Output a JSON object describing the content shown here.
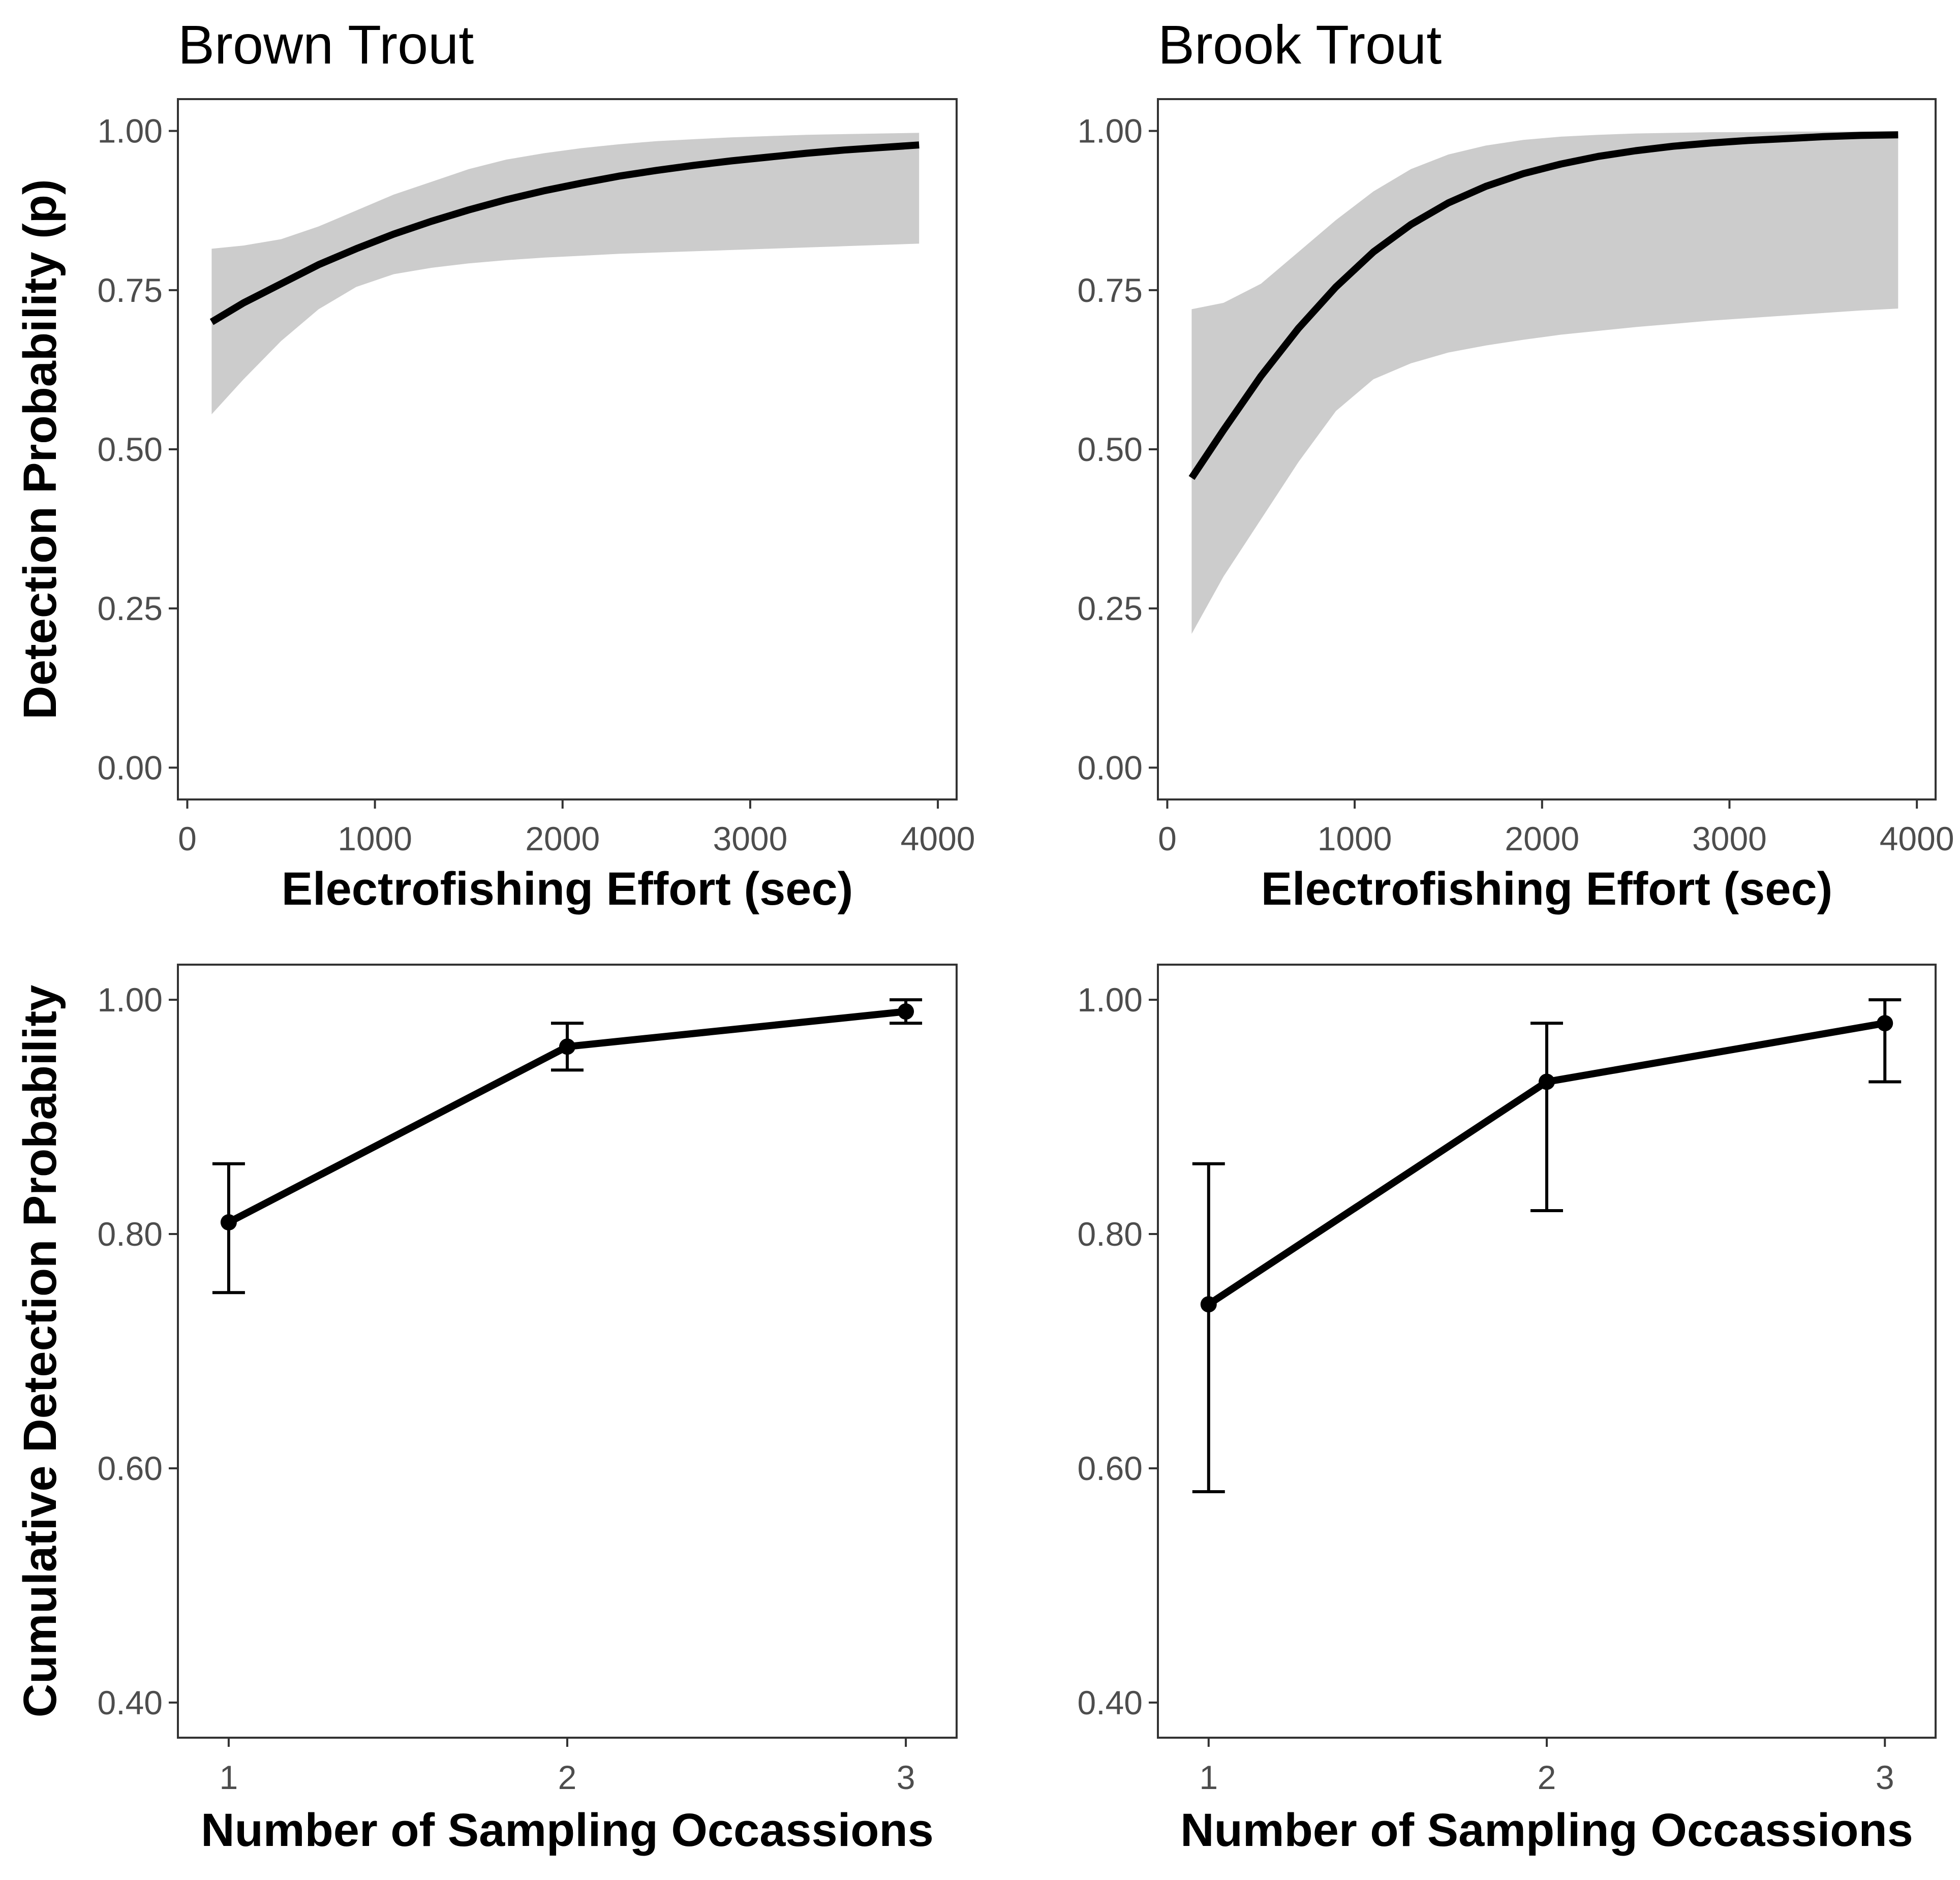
{
  "chart_data": [
    {
      "type": "line",
      "panel": "top-left",
      "title": "Brown Trout",
      "xlabel": "Electrofishing Effort (sec)",
      "ylabel": "Detection Probability (p)",
      "xlim": [
        -50,
        4100
      ],
      "ylim": [
        -0.05,
        1.05
      ],
      "xticks": [
        0,
        1000,
        2000,
        3000,
        4000
      ],
      "xtick_labels": [
        "0",
        "1000",
        "2000",
        "3000",
        "4000"
      ],
      "yticks": [
        0,
        0.25,
        0.5,
        0.75,
        1
      ],
      "ytick_labels": [
        "0.00",
        "0.25",
        "0.50",
        "0.75",
        "1.00"
      ],
      "grid": false,
      "series": [
        {
          "x": [
            130,
            300,
            500,
            700,
            900,
            1100,
            1300,
            1500,
            1700,
            1900,
            2100,
            2300,
            2500,
            2700,
            2900,
            3100,
            3300,
            3500,
            3700,
            3900
          ],
          "y": [
            0.7,
            0.73,
            0.76,
            0.79,
            0.815,
            0.838,
            0.858,
            0.876,
            0.892,
            0.906,
            0.918,
            0.929,
            0.938,
            0.946,
            0.953,
            0.959,
            0.965,
            0.97,
            0.974,
            0.978
          ],
          "lower": [
            0.555,
            0.61,
            0.67,
            0.72,
            0.755,
            0.775,
            0.785,
            0.792,
            0.797,
            0.801,
            0.804,
            0.807,
            0.809,
            0.811,
            0.813,
            0.815,
            0.817,
            0.819,
            0.821,
            0.823
          ],
          "upper": [
            0.815,
            0.82,
            0.83,
            0.85,
            0.875,
            0.9,
            0.92,
            0.94,
            0.955,
            0.965,
            0.973,
            0.979,
            0.984,
            0.987,
            0.99,
            0.992,
            0.994,
            0.995,
            0.996,
            0.997
          ]
        }
      ]
    },
    {
      "type": "line",
      "panel": "top-right",
      "title": "Brook Trout",
      "xlabel": "Electrofishing Effort (sec)",
      "ylabel": "",
      "xlim": [
        -50,
        4100
      ],
      "ylim": [
        -0.05,
        1.05
      ],
      "xticks": [
        0,
        1000,
        2000,
        3000,
        4000
      ],
      "xtick_labels": [
        "0",
        "1000",
        "2000",
        "3000",
        "4000"
      ],
      "yticks": [
        0,
        0.25,
        0.5,
        0.75,
        1
      ],
      "ytick_labels": [
        "0.00",
        "0.25",
        "0.50",
        "0.75",
        "1.00"
      ],
      "grid": false,
      "series": [
        {
          "x": [
            130,
            300,
            500,
            700,
            900,
            1100,
            1300,
            1500,
            1700,
            1900,
            2100,
            2300,
            2500,
            2700,
            2900,
            3100,
            3300,
            3500,
            3700,
            3900
          ],
          "y": [
            0.455,
            0.53,
            0.615,
            0.69,
            0.755,
            0.81,
            0.853,
            0.887,
            0.913,
            0.933,
            0.948,
            0.96,
            0.969,
            0.976,
            0.981,
            0.985,
            0.988,
            0.991,
            0.993,
            0.994
          ],
          "lower": [
            0.21,
            0.3,
            0.39,
            0.48,
            0.56,
            0.61,
            0.635,
            0.652,
            0.663,
            0.672,
            0.68,
            0.686,
            0.692,
            0.697,
            0.702,
            0.706,
            0.71,
            0.714,
            0.718,
            0.721
          ],
          "upper": [
            0.72,
            0.73,
            0.76,
            0.81,
            0.86,
            0.905,
            0.94,
            0.963,
            0.977,
            0.986,
            0.991,
            0.994,
            0.996,
            0.997,
            0.998,
            0.998,
            0.999,
            0.999,
            0.999,
            0.999
          ]
        }
      ]
    },
    {
      "type": "line",
      "panel": "bottom-left",
      "title": "",
      "xlabel": "Number of Sampling Occassions",
      "ylabel": "Cumulative Detection Probability",
      "xlim": [
        0.85,
        3.15
      ],
      "ylim": [
        0.37,
        1.03
      ],
      "xticks": [
        1,
        2,
        3
      ],
      "xtick_labels": [
        "1",
        "2",
        "3"
      ],
      "yticks": [
        0.4,
        0.6,
        0.8,
        1
      ],
      "ytick_labels": [
        "0.40",
        "0.60",
        "0.80",
        "1.00"
      ],
      "grid": false,
      "series": [
        {
          "x": [
            1,
            2,
            3
          ],
          "y": [
            0.81,
            0.96,
            0.99
          ],
          "lower": [
            0.75,
            0.94,
            0.98
          ],
          "upper": [
            0.86,
            0.98,
            1.0
          ]
        }
      ]
    },
    {
      "type": "line",
      "panel": "bottom-right",
      "title": "",
      "xlabel": "Number of Sampling Occassions",
      "ylabel": "",
      "xlim": [
        0.85,
        3.15
      ],
      "ylim": [
        0.37,
        1.03
      ],
      "xticks": [
        1,
        2,
        3
      ],
      "xtick_labels": [
        "1",
        "2",
        "3"
      ],
      "yticks": [
        0.4,
        0.6,
        0.8,
        1
      ],
      "ytick_labels": [
        "0.40",
        "0.60",
        "0.80",
        "1.00"
      ],
      "grid": false,
      "series": [
        {
          "x": [
            1,
            2,
            3
          ],
          "y": [
            0.74,
            0.93,
            0.98
          ],
          "lower": [
            0.58,
            0.82,
            0.93
          ],
          "upper": [
            0.86,
            0.98,
            1.0
          ]
        }
      ]
    }
  ]
}
